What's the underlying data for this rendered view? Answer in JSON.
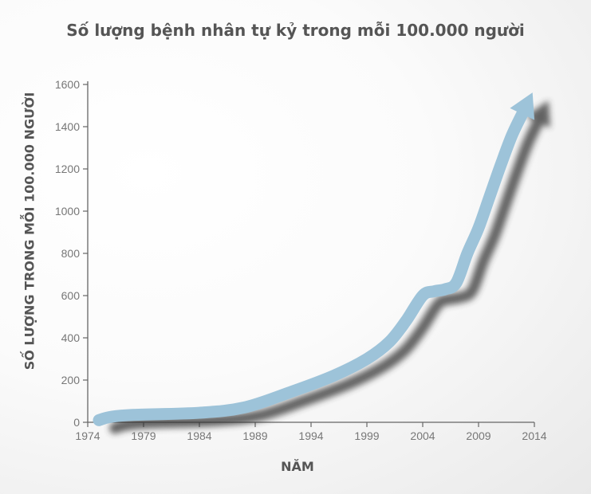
{
  "chart_data": {
    "type": "line",
    "title": "Số lượng bệnh nhân tự kỷ trong mỗi 100.000 người",
    "xlabel": "NĂM",
    "ylabel": "SỐ LƯỢNG TRONG MỖI 100.000 NGƯỜI",
    "x_ticks": [
      "1974",
      "1979",
      "1984",
      "1989",
      "1994",
      "1999",
      "2004",
      "2009",
      "2014"
    ],
    "y_ticks": [
      "0",
      "200",
      "400",
      "600",
      "800",
      "1000",
      "1200",
      "1400",
      "1600"
    ],
    "xlim": [
      1974,
      2014
    ],
    "ylim": [
      0,
      1600
    ],
    "grid": false,
    "series": [
      {
        "color": "#9dc3d9",
        "x": [
          1975,
          1976,
          1978,
          1984,
          1988,
          1992,
          1996,
          1999,
          2001,
          2002.5,
          2004,
          2005,
          2006,
          2007,
          2008,
          2009,
          2010,
          2011,
          2012,
          2013
        ],
        "y": [
          10,
          25,
          35,
          45,
          70,
          140,
          220,
          300,
          380,
          480,
          600,
          620,
          630,
          660,
          800,
          920,
          1070,
          1220,
          1360,
          1470
        ]
      }
    ]
  }
}
